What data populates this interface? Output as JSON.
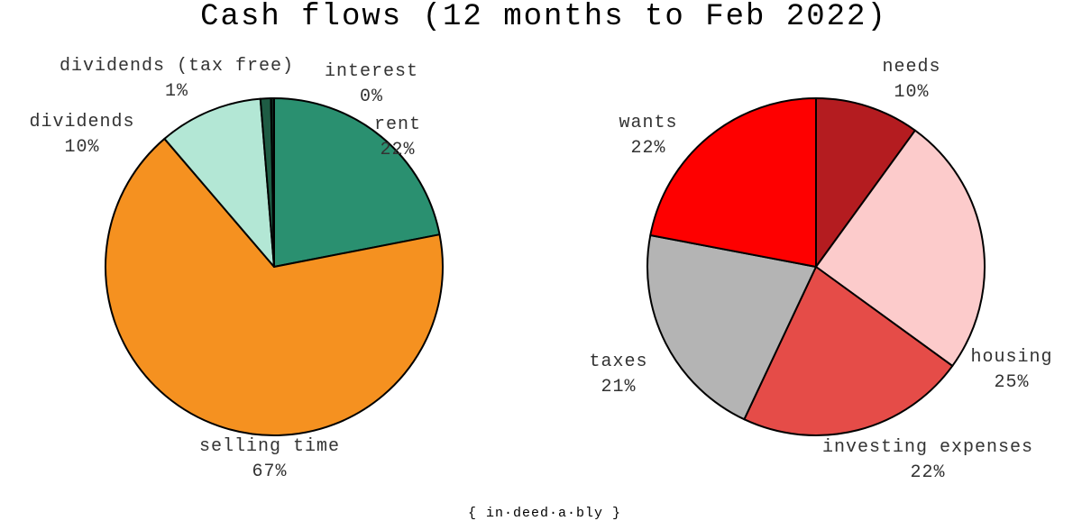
{
  "title": "Cash flows (12 months to Feb 2022)",
  "footer": "{ in·deed·a·bly }",
  "chart_data": [
    {
      "type": "pie",
      "title": "",
      "slices": [
        {
          "label": "rent",
          "pct_label": "22%",
          "value": 22,
          "color": "#2a9070"
        },
        {
          "label": "selling time",
          "pct_label": "67%",
          "value": 67,
          "color": "#f59120"
        },
        {
          "label": "dividends",
          "pct_label": "10%",
          "value": 10,
          "color": "#b3e7d5"
        },
        {
          "label": "dividends (tax free)",
          "pct_label": "1%",
          "value": 1,
          "color": "#1e5c44"
        },
        {
          "label": "interest",
          "pct_label": "0%",
          "value": 0.3,
          "color": "#0c2a1e"
        }
      ]
    },
    {
      "type": "pie",
      "title": "",
      "slices": [
        {
          "label": "needs",
          "pct_label": "10%",
          "value": 10,
          "color": "#b41c20"
        },
        {
          "label": "housing",
          "pct_label": "25%",
          "value": 25,
          "color": "#fccbcb"
        },
        {
          "label": "investing expenses",
          "pct_label": "22%",
          "value": 22,
          "color": "#e54c48"
        },
        {
          "label": "taxes",
          "pct_label": "21%",
          "value": 21,
          "color": "#b4b4b4"
        },
        {
          "label": "wants",
          "pct_label": "22%",
          "value": 22,
          "color": "#fe0000"
        }
      ]
    }
  ]
}
